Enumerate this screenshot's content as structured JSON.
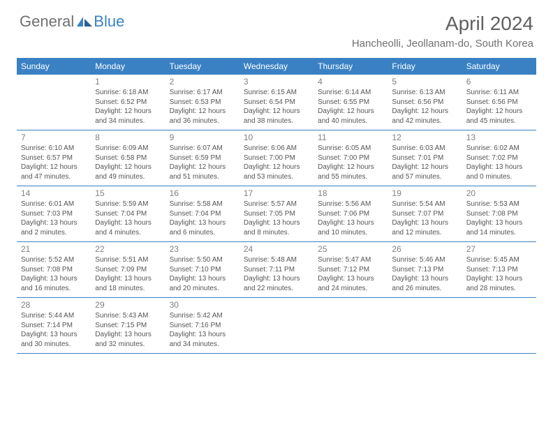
{
  "brand": {
    "part1": "General",
    "part2": "Blue"
  },
  "title": "April 2024",
  "location": "Hancheolli, Jeollanam-do, South Korea",
  "colors": {
    "header_bg": "#3a81c4",
    "header_text": "#ffffff",
    "brand_gray": "#707070",
    "brand_blue": "#3a81c4",
    "title_color": "#606060",
    "body_text": "#555555",
    "daynum_color": "#808080",
    "row_border": "#3a81c4",
    "background": "#ffffff"
  },
  "typography": {
    "title_fontsize": 28,
    "location_fontsize": 15,
    "dayheader_fontsize": 12,
    "daynum_fontsize": 12,
    "info_fontsize": 10
  },
  "dayNames": [
    "Sunday",
    "Monday",
    "Tuesday",
    "Wednesday",
    "Thursday",
    "Friday",
    "Saturday"
  ],
  "weeks": [
    [
      null,
      {
        "n": "1",
        "sr": "Sunrise: 6:18 AM",
        "ss": "Sunset: 6:52 PM",
        "dl": "Daylight: 12 hours and 34 minutes."
      },
      {
        "n": "2",
        "sr": "Sunrise: 6:17 AM",
        "ss": "Sunset: 6:53 PM",
        "dl": "Daylight: 12 hours and 36 minutes."
      },
      {
        "n": "3",
        "sr": "Sunrise: 6:15 AM",
        "ss": "Sunset: 6:54 PM",
        "dl": "Daylight: 12 hours and 38 minutes."
      },
      {
        "n": "4",
        "sr": "Sunrise: 6:14 AM",
        "ss": "Sunset: 6:55 PM",
        "dl": "Daylight: 12 hours and 40 minutes."
      },
      {
        "n": "5",
        "sr": "Sunrise: 6:13 AM",
        "ss": "Sunset: 6:56 PM",
        "dl": "Daylight: 12 hours and 42 minutes."
      },
      {
        "n": "6",
        "sr": "Sunrise: 6:11 AM",
        "ss": "Sunset: 6:56 PM",
        "dl": "Daylight: 12 hours and 45 minutes."
      }
    ],
    [
      {
        "n": "7",
        "sr": "Sunrise: 6:10 AM",
        "ss": "Sunset: 6:57 PM",
        "dl": "Daylight: 12 hours and 47 minutes."
      },
      {
        "n": "8",
        "sr": "Sunrise: 6:09 AM",
        "ss": "Sunset: 6:58 PM",
        "dl": "Daylight: 12 hours and 49 minutes."
      },
      {
        "n": "9",
        "sr": "Sunrise: 6:07 AM",
        "ss": "Sunset: 6:59 PM",
        "dl": "Daylight: 12 hours and 51 minutes."
      },
      {
        "n": "10",
        "sr": "Sunrise: 6:06 AM",
        "ss": "Sunset: 7:00 PM",
        "dl": "Daylight: 12 hours and 53 minutes."
      },
      {
        "n": "11",
        "sr": "Sunrise: 6:05 AM",
        "ss": "Sunset: 7:00 PM",
        "dl": "Daylight: 12 hours and 55 minutes."
      },
      {
        "n": "12",
        "sr": "Sunrise: 6:03 AM",
        "ss": "Sunset: 7:01 PM",
        "dl": "Daylight: 12 hours and 57 minutes."
      },
      {
        "n": "13",
        "sr": "Sunrise: 6:02 AM",
        "ss": "Sunset: 7:02 PM",
        "dl": "Daylight: 13 hours and 0 minutes."
      }
    ],
    [
      {
        "n": "14",
        "sr": "Sunrise: 6:01 AM",
        "ss": "Sunset: 7:03 PM",
        "dl": "Daylight: 13 hours and 2 minutes."
      },
      {
        "n": "15",
        "sr": "Sunrise: 5:59 AM",
        "ss": "Sunset: 7:04 PM",
        "dl": "Daylight: 13 hours and 4 minutes."
      },
      {
        "n": "16",
        "sr": "Sunrise: 5:58 AM",
        "ss": "Sunset: 7:04 PM",
        "dl": "Daylight: 13 hours and 6 minutes."
      },
      {
        "n": "17",
        "sr": "Sunrise: 5:57 AM",
        "ss": "Sunset: 7:05 PM",
        "dl": "Daylight: 13 hours and 8 minutes."
      },
      {
        "n": "18",
        "sr": "Sunrise: 5:56 AM",
        "ss": "Sunset: 7:06 PM",
        "dl": "Daylight: 13 hours and 10 minutes."
      },
      {
        "n": "19",
        "sr": "Sunrise: 5:54 AM",
        "ss": "Sunset: 7:07 PM",
        "dl": "Daylight: 13 hours and 12 minutes."
      },
      {
        "n": "20",
        "sr": "Sunrise: 5:53 AM",
        "ss": "Sunset: 7:08 PM",
        "dl": "Daylight: 13 hours and 14 minutes."
      }
    ],
    [
      {
        "n": "21",
        "sr": "Sunrise: 5:52 AM",
        "ss": "Sunset: 7:08 PM",
        "dl": "Daylight: 13 hours and 16 minutes."
      },
      {
        "n": "22",
        "sr": "Sunrise: 5:51 AM",
        "ss": "Sunset: 7:09 PM",
        "dl": "Daylight: 13 hours and 18 minutes."
      },
      {
        "n": "23",
        "sr": "Sunrise: 5:50 AM",
        "ss": "Sunset: 7:10 PM",
        "dl": "Daylight: 13 hours and 20 minutes."
      },
      {
        "n": "24",
        "sr": "Sunrise: 5:48 AM",
        "ss": "Sunset: 7:11 PM",
        "dl": "Daylight: 13 hours and 22 minutes."
      },
      {
        "n": "25",
        "sr": "Sunrise: 5:47 AM",
        "ss": "Sunset: 7:12 PM",
        "dl": "Daylight: 13 hours and 24 minutes."
      },
      {
        "n": "26",
        "sr": "Sunrise: 5:46 AM",
        "ss": "Sunset: 7:13 PM",
        "dl": "Daylight: 13 hours and 26 minutes."
      },
      {
        "n": "27",
        "sr": "Sunrise: 5:45 AM",
        "ss": "Sunset: 7:13 PM",
        "dl": "Daylight: 13 hours and 28 minutes."
      }
    ],
    [
      {
        "n": "28",
        "sr": "Sunrise: 5:44 AM",
        "ss": "Sunset: 7:14 PM",
        "dl": "Daylight: 13 hours and 30 minutes."
      },
      {
        "n": "29",
        "sr": "Sunrise: 5:43 AM",
        "ss": "Sunset: 7:15 PM",
        "dl": "Daylight: 13 hours and 32 minutes."
      },
      {
        "n": "30",
        "sr": "Sunrise: 5:42 AM",
        "ss": "Sunset: 7:16 PM",
        "dl": "Daylight: 13 hours and 34 minutes."
      },
      null,
      null,
      null,
      null
    ]
  ]
}
